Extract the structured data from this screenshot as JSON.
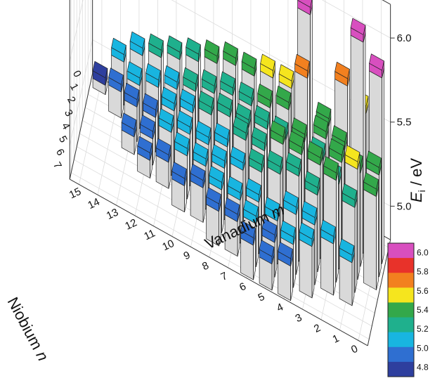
{
  "chart_data": {
    "type": "bar3d",
    "title": "",
    "x_axis": {
      "label_prefix": "Vanadium ",
      "label_var": "m",
      "ticks": [
        "15",
        "14",
        "13",
        "12",
        "11",
        "10",
        "9",
        "8",
        "7",
        "6",
        "5",
        "4",
        "3",
        "2",
        "1",
        "0"
      ]
    },
    "y_axis": {
      "label_prefix": "Niobium ",
      "label_var": "n",
      "ticks": [
        "0",
        "1",
        "2",
        "3",
        "4",
        "5",
        "6",
        "7"
      ]
    },
    "z_axis": {
      "label_var": "E",
      "label_sub": "i",
      "label_suffix": " / eV",
      "ticks": [
        "5.0",
        "5.5",
        "6.0"
      ],
      "range": [
        4.8,
        6.2
      ]
    },
    "colorbar": {
      "ticks": [
        "6.0",
        "5.8",
        "5.6",
        "5.4",
        "5.2",
        "5.0",
        "4.8"
      ],
      "colors": [
        "#d84fbf",
        "#e8322a",
        "#f2801f",
        "#f5e51e",
        "#33a84a",
        "#1fb08d",
        "#18b5e0",
        "#2f6fd1",
        "#2e3f9e"
      ]
    },
    "grid": true,
    "bars": [
      {
        "m": 0,
        "n": 1,
        "v": 5.95
      },
      {
        "m": 0,
        "n": 2,
        "v": 5.45
      },
      {
        "m": 0,
        "n": 3,
        "v": 5.4
      },
      {
        "m": 1,
        "n": 0,
        "v": 5.6
      },
      {
        "m": 1,
        "n": 1,
        "v": 6.1
      },
      {
        "m": 1,
        "n": 2,
        "v": 5.4
      },
      {
        "m": 1,
        "n": 3,
        "v": 5.5
      },
      {
        "m": 1,
        "n": 4,
        "v": 5.35
      },
      {
        "m": 1,
        "n": 5,
        "v": 5.1
      },
      {
        "m": 2,
        "n": 0,
        "v": 5.7
      },
      {
        "m": 2,
        "n": 1,
        "v": 5.4
      },
      {
        "m": 2,
        "n": 2,
        "v": 5.4
      },
      {
        "m": 2,
        "n": 3,
        "v": 5.35
      },
      {
        "m": 2,
        "n": 4,
        "v": 5.45
      },
      {
        "m": 2,
        "n": 5,
        "v": 5.15
      },
      {
        "m": 3,
        "n": 0,
        "v": 5.4
      },
      {
        "m": 3,
        "n": 1,
        "v": 5.4
      },
      {
        "m": 3,
        "n": 2,
        "v": 5.35
      },
      {
        "m": 3,
        "n": 3,
        "v": 5.4
      },
      {
        "m": 3,
        "n": 4,
        "v": 5.3
      },
      {
        "m": 3,
        "n": 5,
        "v": 5.2
      },
      {
        "m": 3,
        "n": 6,
        "v": 5.15
      },
      {
        "m": 4,
        "n": 0,
        "v": 6.0
      },
      {
        "m": 4,
        "n": 1,
        "v": 5.7
      },
      {
        "m": 4,
        "n": 2,
        "v": 5.4
      },
      {
        "m": 4,
        "n": 3,
        "v": 5.4
      },
      {
        "m": 4,
        "n": 4,
        "v": 5.35
      },
      {
        "m": 4,
        "n": 5,
        "v": 5.2
      },
      {
        "m": 4,
        "n": 6,
        "v": 5.1
      },
      {
        "m": 4,
        "n": 7,
        "v": 5.05
      },
      {
        "m": 5,
        "n": 0,
        "v": 5.5
      },
      {
        "m": 5,
        "n": 1,
        "v": 5.45
      },
      {
        "m": 5,
        "n": 2,
        "v": 5.35
      },
      {
        "m": 5,
        "n": 3,
        "v": 5.4
      },
      {
        "m": 5,
        "n": 4,
        "v": 5.3
      },
      {
        "m": 5,
        "n": 5,
        "v": 5.1
      },
      {
        "m": 5,
        "n": 6,
        "v": 5.05
      },
      {
        "m": 5,
        "n": 7,
        "v": 5.0
      },
      {
        "m": 6,
        "n": 0,
        "v": 5.5
      },
      {
        "m": 6,
        "n": 1,
        "v": 5.4
      },
      {
        "m": 6,
        "n": 2,
        "v": 5.35
      },
      {
        "m": 6,
        "n": 3,
        "v": 5.3
      },
      {
        "m": 6,
        "n": 4,
        "v": 5.25
      },
      {
        "m": 6,
        "n": 5,
        "v": 5.15
      },
      {
        "m": 6,
        "n": 6,
        "v": 5.1
      },
      {
        "m": 6,
        "n": 7,
        "v": 5.05
      },
      {
        "m": 7,
        "n": 0,
        "v": 5.45
      },
      {
        "m": 7,
        "n": 1,
        "v": 5.35
      },
      {
        "m": 7,
        "n": 2,
        "v": 5.3
      },
      {
        "m": 7,
        "n": 3,
        "v": 5.3
      },
      {
        "m": 7,
        "n": 4,
        "v": 5.2
      },
      {
        "m": 7,
        "n": 5,
        "v": 5.1
      },
      {
        "m": 7,
        "n": 6,
        "v": 5.05
      },
      {
        "m": 8,
        "n": 0,
        "v": 5.45
      },
      {
        "m": 8,
        "n": 1,
        "v": 5.35
      },
      {
        "m": 8,
        "n": 2,
        "v": 5.3
      },
      {
        "m": 8,
        "n": 3,
        "v": 5.2
      },
      {
        "m": 8,
        "n": 4,
        "v": 5.15
      },
      {
        "m": 8,
        "n": 5,
        "v": 5.1
      },
      {
        "m": 8,
        "n": 6,
        "v": 5.05
      },
      {
        "m": 9,
        "n": 0,
        "v": 5.4
      },
      {
        "m": 9,
        "n": 1,
        "v": 5.3
      },
      {
        "m": 9,
        "n": 2,
        "v": 5.25
      },
      {
        "m": 9,
        "n": 3,
        "v": 5.15
      },
      {
        "m": 9,
        "n": 4,
        "v": 5.1
      },
      {
        "m": 9,
        "n": 5,
        "v": 5.05
      },
      {
        "m": 10,
        "n": 0,
        "v": 5.35
      },
      {
        "m": 10,
        "n": 1,
        "v": 5.25
      },
      {
        "m": 10,
        "n": 2,
        "v": 5.2
      },
      {
        "m": 10,
        "n": 3,
        "v": 5.15
      },
      {
        "m": 10,
        "n": 4,
        "v": 5.1
      },
      {
        "m": 10,
        "n": 5,
        "v": 5.0
      },
      {
        "m": 11,
        "n": 0,
        "v": 5.3
      },
      {
        "m": 11,
        "n": 1,
        "v": 5.2
      },
      {
        "m": 11,
        "n": 2,
        "v": 5.15
      },
      {
        "m": 11,
        "n": 3,
        "v": 5.1
      },
      {
        "m": 11,
        "n": 4,
        "v": 5.0
      },
      {
        "m": 12,
        "n": 0,
        "v": 5.25
      },
      {
        "m": 12,
        "n": 1,
        "v": 5.15
      },
      {
        "m": 12,
        "n": 2,
        "v": 5.05
      },
      {
        "m": 12,
        "n": 3,
        "v": 5.0
      },
      {
        "m": 12,
        "n": 4,
        "v": 4.95
      },
      {
        "m": 13,
        "n": 0,
        "v": 5.2
      },
      {
        "m": 13,
        "n": 1,
        "v": 5.1
      },
      {
        "m": 13,
        "n": 2,
        "v": 5.05
      },
      {
        "m": 13,
        "n": 3,
        "v": 4.95
      },
      {
        "m": 14,
        "n": 0,
        "v": 5.1
      },
      {
        "m": 14,
        "n": 1,
        "v": 5.0
      },
      {
        "m": 15,
        "n": 0,
        "v": 4.9
      }
    ]
  }
}
